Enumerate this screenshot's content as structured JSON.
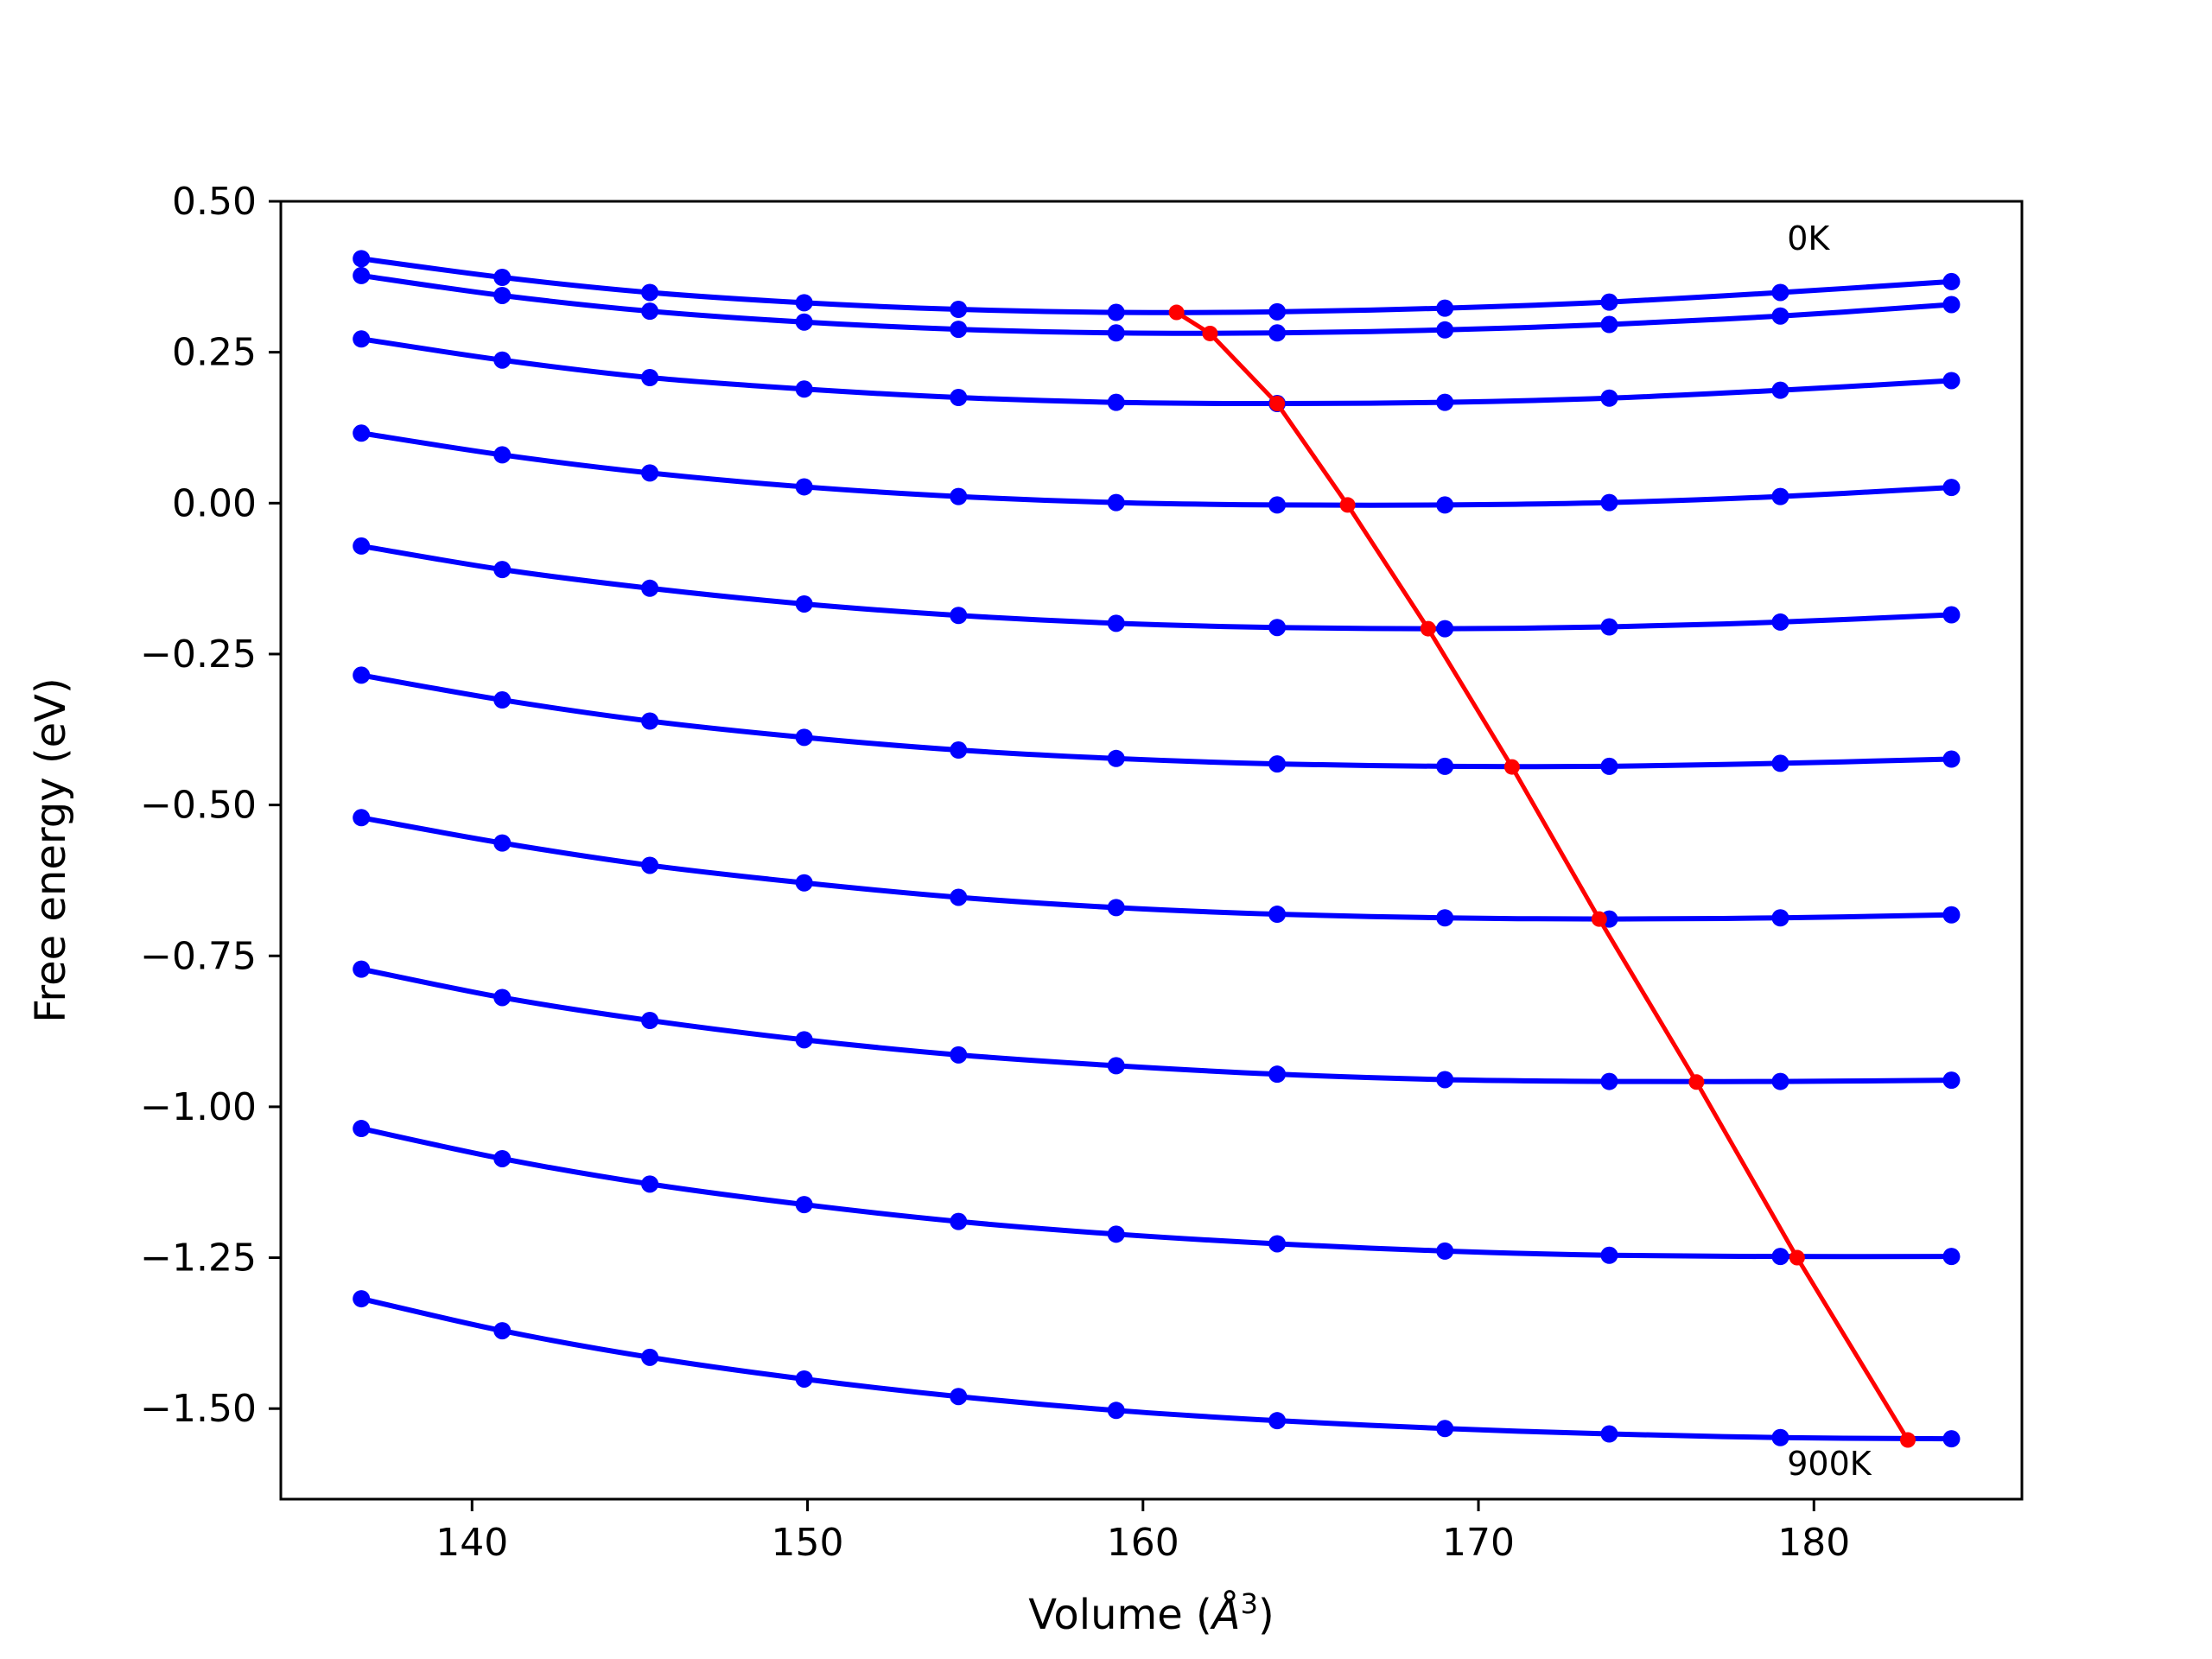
{
  "chart_data": {
    "type": "line",
    "xlabel_text": "Volume (",
    "xlabel_unit": "Å",
    "xlabel_sup": "3",
    "xlabel_close": ")",
    "ylabel": "Free energy (eV)",
    "xlim": [
      134.3,
      186.2
    ],
    "ylim": [
      -1.65,
      0.5
    ],
    "x_ticks": [
      140,
      150,
      160,
      170,
      180
    ],
    "x_tick_labels": [
      "140",
      "150",
      "160",
      "170",
      "180"
    ],
    "y_ticks": [
      0.5,
      0.25,
      0.0,
      -0.25,
      -0.5,
      -0.75,
      -1.0,
      -1.25,
      -1.5
    ],
    "y_tick_labels": [
      "0.50",
      "0.25",
      "0.00",
      "−0.25",
      "−0.50",
      "−0.75",
      "−1.00",
      "−1.25",
      "−1.50"
    ],
    "grid": false,
    "colors": {
      "curves": "#0000ff",
      "min_path": "#ff0000"
    },
    "annotations": [
      {
        "text": "0K",
        "x": 179.2,
        "y": 0.42
      },
      {
        "text": "900K",
        "x": 179.2,
        "y": -1.61
      }
    ],
    "x": [
      136.7,
      140.9,
      145.3,
      149.9,
      154.5,
      159.2,
      164.0,
      169.0,
      173.9,
      179.0,
      184.1
    ],
    "series": [
      {
        "values": [
          0.405,
          0.374,
          0.349,
          0.332,
          0.321,
          0.316,
          0.317,
          0.323,
          0.333,
          0.349,
          0.367
        ]
      },
      {
        "values": [
          0.377,
          0.344,
          0.318,
          0.3,
          0.288,
          0.282,
          0.282,
          0.287,
          0.296,
          0.31,
          0.329
        ]
      },
      {
        "values": [
          0.272,
          0.237,
          0.208,
          0.189,
          0.175,
          0.167,
          0.165,
          0.167,
          0.174,
          0.187,
          0.203
        ]
      },
      {
        "values": [
          0.116,
          0.08,
          0.05,
          0.027,
          0.011,
          0.001,
          -0.003,
          -0.003,
          0.001,
          0.011,
          0.026
        ]
      },
      {
        "values": [
          -0.071,
          -0.11,
          -0.141,
          -0.167,
          -0.186,
          -0.199,
          -0.206,
          -0.208,
          -0.205,
          -0.197,
          -0.185
        ]
      },
      {
        "values": [
          -0.285,
          -0.326,
          -0.361,
          -0.388,
          -0.409,
          -0.423,
          -0.432,
          -0.436,
          -0.436,
          -0.431,
          -0.424
        ]
      },
      {
        "values": [
          -0.521,
          -0.563,
          -0.6,
          -0.629,
          -0.653,
          -0.67,
          -0.681,
          -0.687,
          -0.689,
          -0.687,
          -0.682
        ]
      },
      {
        "values": [
          -0.772,
          -0.819,
          -0.857,
          -0.889,
          -0.914,
          -0.932,
          -0.946,
          -0.955,
          -0.958,
          -0.958,
          -0.956
        ]
      },
      {
        "values": [
          -1.036,
          -1.086,
          -1.128,
          -1.162,
          -1.19,
          -1.211,
          -1.227,
          -1.239,
          -1.246,
          -1.248,
          -1.248
        ]
      },
      {
        "values": [
          -1.318,
          -1.371,
          -1.415,
          -1.451,
          -1.48,
          -1.503,
          -1.52,
          -1.533,
          -1.542,
          -1.548,
          -1.55
        ]
      }
    ],
    "min_path": {
      "x": [
        161.0,
        162.0,
        164.0,
        166.1,
        168.5,
        171.0,
        173.6,
        176.5,
        179.5,
        182.8
      ],
      "y": [
        0.316,
        0.281,
        0.165,
        -0.003,
        -0.208,
        -0.437,
        -0.689,
        -0.959,
        -1.25,
        -1.552
      ]
    }
  }
}
